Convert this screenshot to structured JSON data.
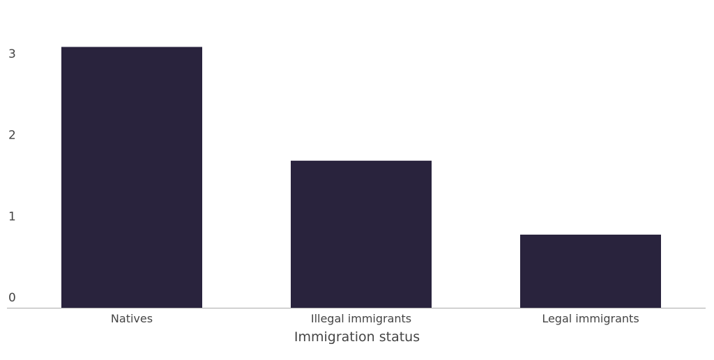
{
  "chart_data": {
    "type": "bar",
    "title": "",
    "xlabel": "Immigration status",
    "ylabel": "",
    "categories": [
      "Natives",
      "Illegal immigrants",
      "Legal immigrants"
    ],
    "values": [
      3.21,
      1.81,
      0.9
    ],
    "ylim": [
      0,
      3.2
    ],
    "yticks": [
      0,
      1,
      2,
      3
    ],
    "grid": false,
    "bar_color": "#29233d",
    "axis_color": "#aaaaaa"
  }
}
